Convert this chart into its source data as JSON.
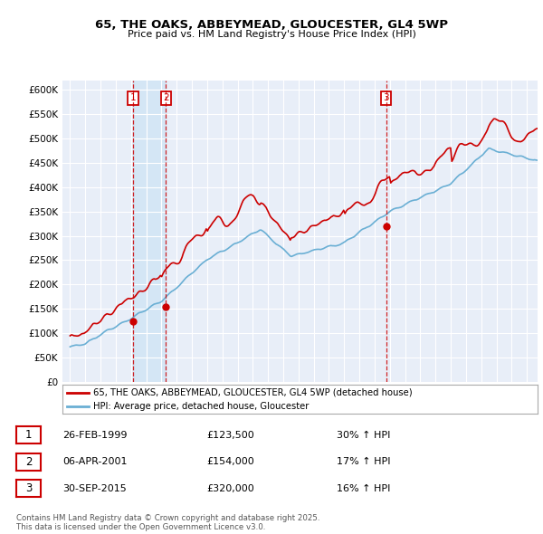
{
  "title": "65, THE OAKS, ABBEYMEAD, GLOUCESTER, GL4 5WP",
  "subtitle": "Price paid vs. HM Land Registry's House Price Index (HPI)",
  "background_color": "#ffffff",
  "plot_bg_color": "#e8eef8",
  "grid_color": "#ffffff",
  "legend_label_red": "65, THE OAKS, ABBEYMEAD, GLOUCESTER, GL4 5WP (detached house)",
  "legend_label_blue": "HPI: Average price, detached house, Gloucester",
  "sale_dates": [
    1999.15,
    2001.3,
    2015.75
  ],
  "sale_prices": [
    123500,
    154000,
    320000
  ],
  "sale_labels": [
    "1",
    "2",
    "3"
  ],
  "table_rows": [
    {
      "num": "1",
      "date": "26-FEB-1999",
      "price": "£123,500",
      "change": "30% ↑ HPI"
    },
    {
      "num": "2",
      "date": "06-APR-2001",
      "price": "£154,000",
      "change": "17% ↑ HPI"
    },
    {
      "num": "3",
      "date": "30-SEP-2015",
      "price": "£320,000",
      "change": "16% ↑ HPI"
    }
  ],
  "footnote": "Contains HM Land Registry data © Crown copyright and database right 2025.\nThis data is licensed under the Open Government Licence v3.0.",
  "red_color": "#cc0000",
  "blue_color": "#6aafd4",
  "highlight_color": "#d0e4f5",
  "ylim": [
    0,
    620000
  ],
  "yticks": [
    0,
    50000,
    100000,
    150000,
    200000,
    250000,
    300000,
    350000,
    400000,
    450000,
    500000,
    550000,
    600000
  ],
  "xmin": 1994.5,
  "xmax": 2025.7
}
